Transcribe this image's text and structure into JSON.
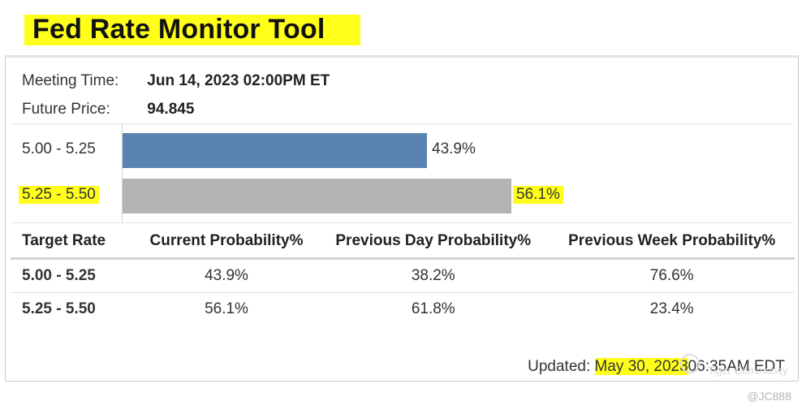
{
  "header": {
    "title": "Fed Rate Monitor Tool"
  },
  "meeting": {
    "time_label": "Meeting Time:",
    "time_value": "Jun 14, 2023 02:00PM ET",
    "price_label": "Future Price:",
    "price_value": "94.845"
  },
  "bars": [
    {
      "label": "5.00 - 5.25",
      "value_text": "43.9%",
      "value": 43.9,
      "color": "#5b83b1"
    },
    {
      "label": "5.25 - 5.50",
      "value_text": "56.1%",
      "value": 56.1,
      "color": "#b3b3b3"
    }
  ],
  "table": {
    "headers": [
      "Target Rate",
      "Current Probability%",
      "Previous Day Probability%",
      "Previous Week Probability%"
    ],
    "rows": [
      [
        "5.00 - 5.25",
        "43.9%",
        "38.2%",
        "76.6%"
      ],
      [
        "5.25 - 5.50",
        "56.1%",
        "61.8%",
        "23.4%"
      ]
    ]
  },
  "updated": {
    "prefix": "Updated:",
    "date": "May 30, 2023",
    "time": "06:35AM EDT"
  },
  "watermark": {
    "text": "Tiger Community"
  },
  "credit": "@JC888",
  "colors": {
    "highlight": "#ffff1a"
  }
}
